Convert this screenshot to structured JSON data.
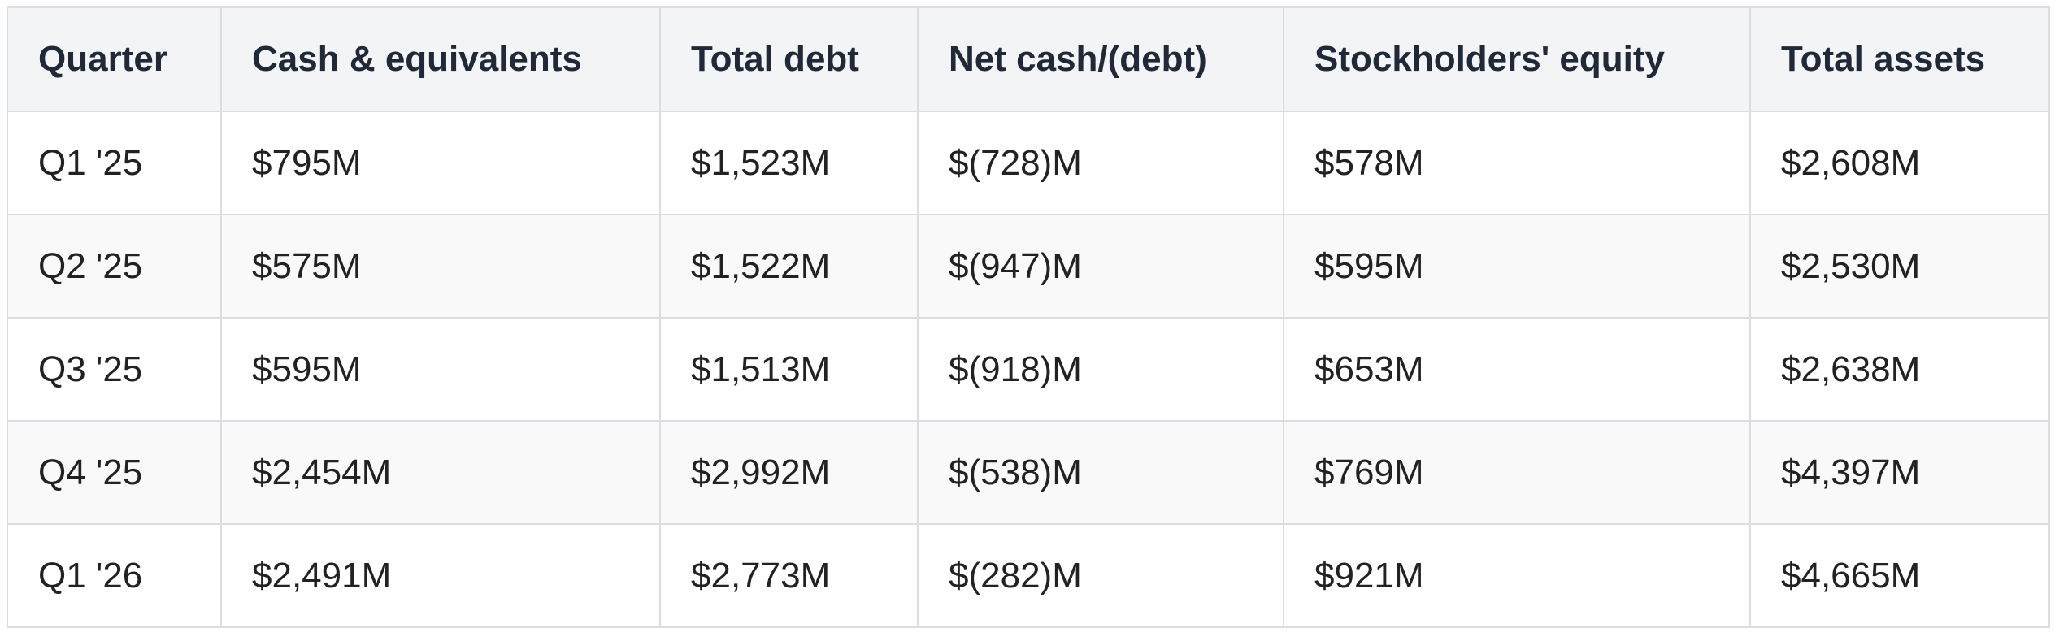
{
  "table": {
    "header": [
      "Quarter",
      "Cash & equivalents",
      "Total debt",
      "Net cash/(debt)",
      "Stockholders' equity",
      "Total assets"
    ],
    "rows": [
      [
        "Q1 '25",
        "$795M",
        "$1,523M",
        "$(728)M",
        "$578M",
        "$2,608M"
      ],
      [
        "Q2 '25",
        "$575M",
        "$1,522M",
        "$(947)M",
        "$595M",
        "$2,530M"
      ],
      [
        "Q3 '25",
        "$595M",
        "$1,513M",
        "$(918)M",
        "$653M",
        "$2,638M"
      ],
      [
        "Q4 '25",
        "$2,454M",
        "$2,992M",
        "$(538)M",
        "$769M",
        "$4,397M"
      ],
      [
        "Q1 '26",
        "$2,491M",
        "$2,773M",
        "$(282)M",
        "$921M",
        "$4,665M"
      ]
    ]
  }
}
